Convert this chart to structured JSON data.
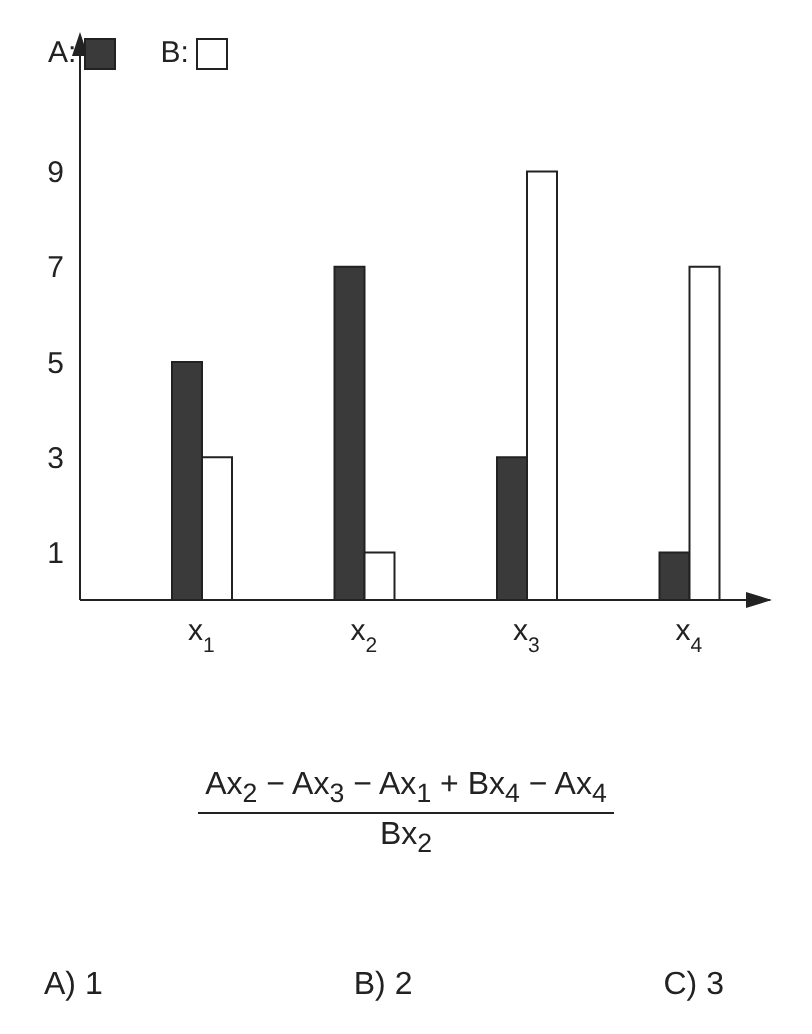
{
  "chart_data": {
    "type": "bar",
    "categories": [
      "x$_{1}$",
      "x$_{2}$",
      "x$_{3}$",
      "x$_{4}$"
    ],
    "series": [
      {
        "name": "A:",
        "color": "#3a3a3a",
        "values": [
          5,
          7,
          3,
          1
        ]
      },
      {
        "name": "B:",
        "color": "#ffffff",
        "values": [
          3,
          1,
          9,
          7
        ]
      }
    ],
    "ylim": [
      0,
      10
    ],
    "yticks": [
      1,
      3,
      5,
      7,
      9
    ],
    "grid": false,
    "legend": "top left",
    "annotations": [
      "Ax$_{2}$ − Ax$_{3}$ − Ax$_{1}$ + Bx$_{4}$ − Ax$_{4}$",
      "Bx$_{2}$",
      "A) 1",
      "B) 2",
      "C) 3"
    ]
  }
}
